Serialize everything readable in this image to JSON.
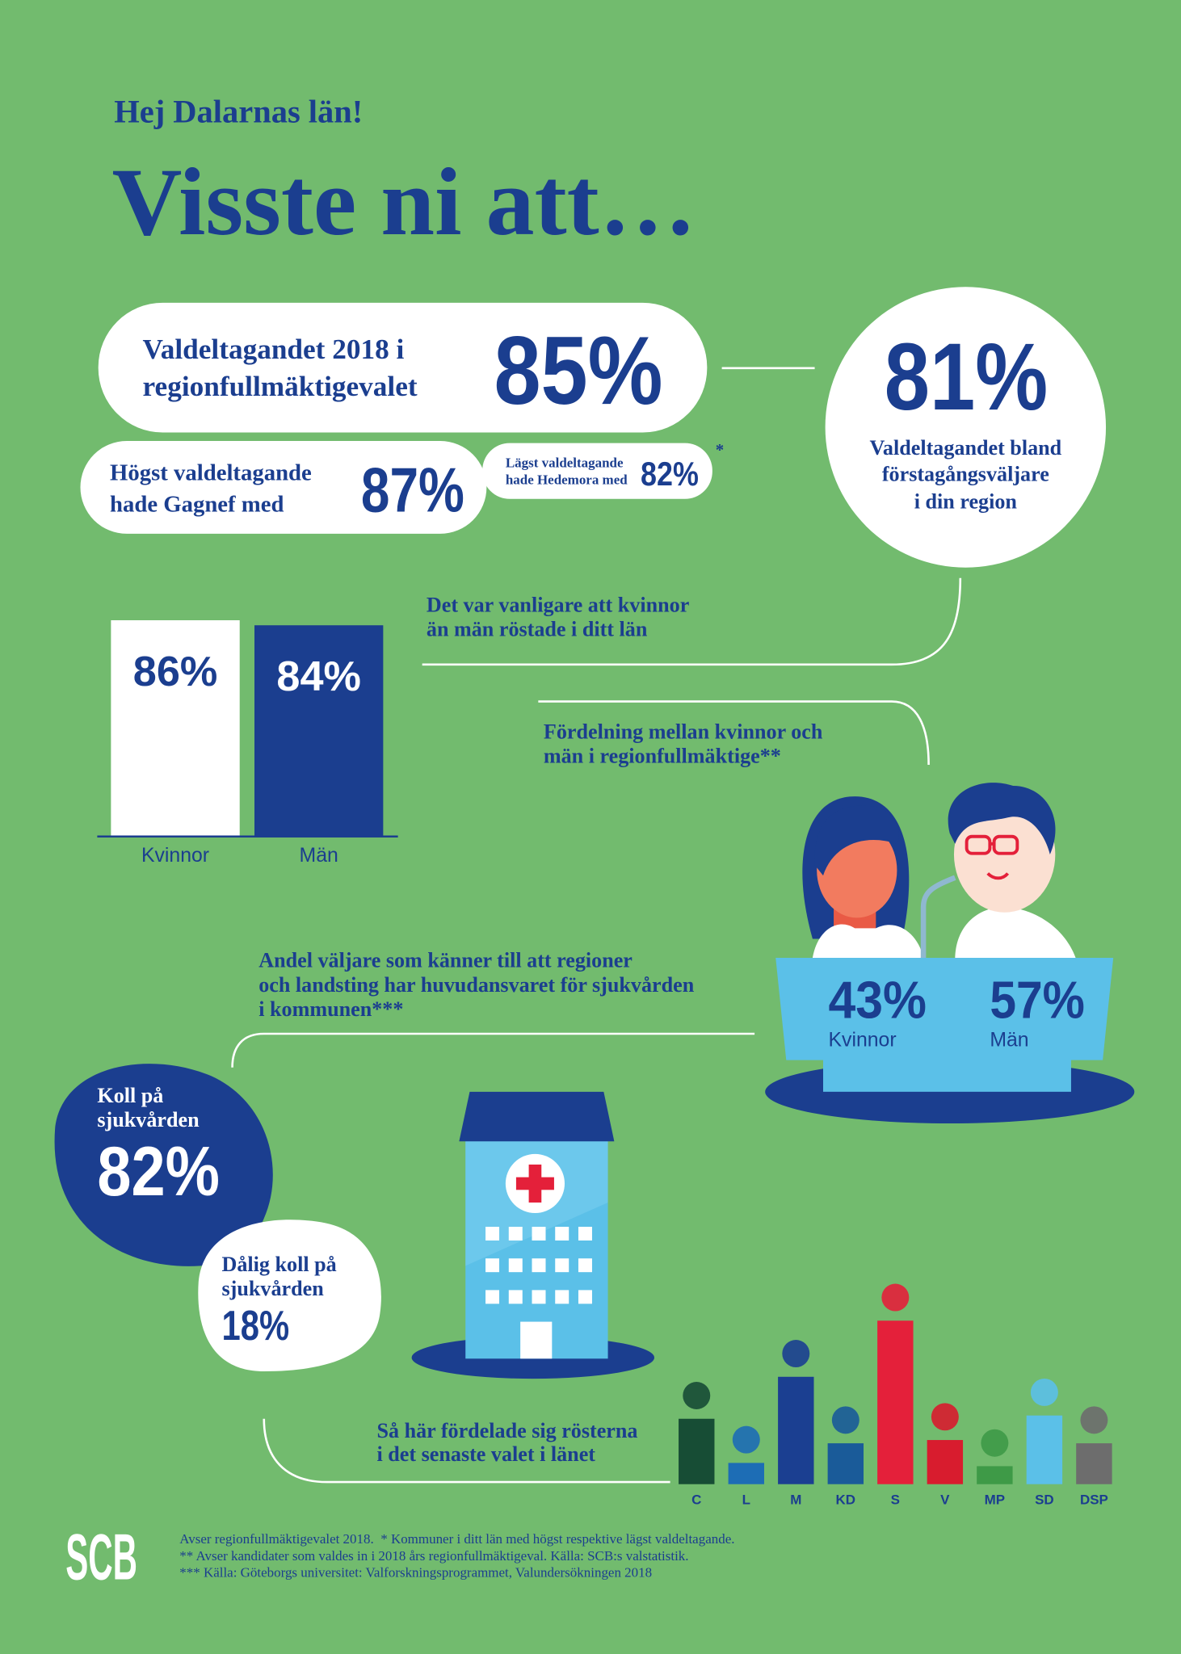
{
  "header": {
    "greeting": "Hej Dalarnas län!",
    "title": "Visste ni att…"
  },
  "turnout": {
    "lines": [
      "Valdeltagandet 2018 i",
      "regionfullmäktigevalet"
    ],
    "value": "85%"
  },
  "first_time_voters": {
    "value": "81%",
    "lines": [
      "Valdeltagandet bland",
      "förstagångsväljare",
      "i din region"
    ]
  },
  "highest": {
    "lines": [
      "Högst valdeltagande",
      "hade Gagnef med"
    ],
    "value": "87%"
  },
  "lowest": {
    "lines": [
      "Lägst valdeltagande",
      "hade Hedemora med"
    ],
    "value": "82%",
    "note": "*"
  },
  "gender_turnout": {
    "text": [
      "Det var vanligare att kvinnor",
      "än män röstade i ditt län"
    ],
    "categories": [
      "Kvinnor",
      "Män"
    ],
    "values": [
      86,
      84
    ],
    "value_labels": [
      "86%",
      "84%"
    ],
    "colors": [
      "#ffffff",
      "#1b3e8f"
    ]
  },
  "council_gender": {
    "text": [
      "Fördelning mellan kvinnor och",
      "män i regionfullmäktige**"
    ],
    "categories": [
      "Kvinnor",
      "Män"
    ],
    "values": [
      "43%",
      "57%"
    ]
  },
  "healthcare": {
    "text": [
      "Andel väljare som känner till att regioner",
      "och landsting har huvudansvaret för sjukvården",
      "i kommunen***"
    ],
    "aware": {
      "lines": [
        "Koll på",
        "sjukvården"
      ],
      "value": "82%"
    },
    "unaware": {
      "lines": [
        "Dålig koll på",
        "sjukvården"
      ],
      "value": "18%"
    }
  },
  "party_chart": {
    "type": "bar",
    "text": [
      "Så här fördelade sig rösterna",
      "i det senaste valet i länet"
    ],
    "categories": [
      "C",
      "L",
      "M",
      "KD",
      "S",
      "V",
      "MP",
      "SD",
      "DSP"
    ],
    "values": [
      12,
      3.9,
      19.7,
      7.5,
      30,
      8.1,
      3.3,
      12.6,
      7.5
    ],
    "colors": [
      "#174d35",
      "#1d6db5",
      "#1b3f91",
      "#1a5b99",
      "#e4203a",
      "#d81c2e",
      "#3e9a47",
      "#5bc0e8",
      "#6d6d6d"
    ]
  },
  "footer": {
    "logo": "SCB",
    "notes": [
      "Avser regionfullmäktigevalet 2018.  * Kommuner i ditt län med högst respektive lägst valdeltagande.",
      "** Avser kandidater som valdes in i 2018 års regionfullmäktigeval. Källa: SCB:s valstatistik.",
      "*** Källa: Göteborgs universitet: Valforskningsprogrammet, Valundersökningen 2018"
    ]
  }
}
